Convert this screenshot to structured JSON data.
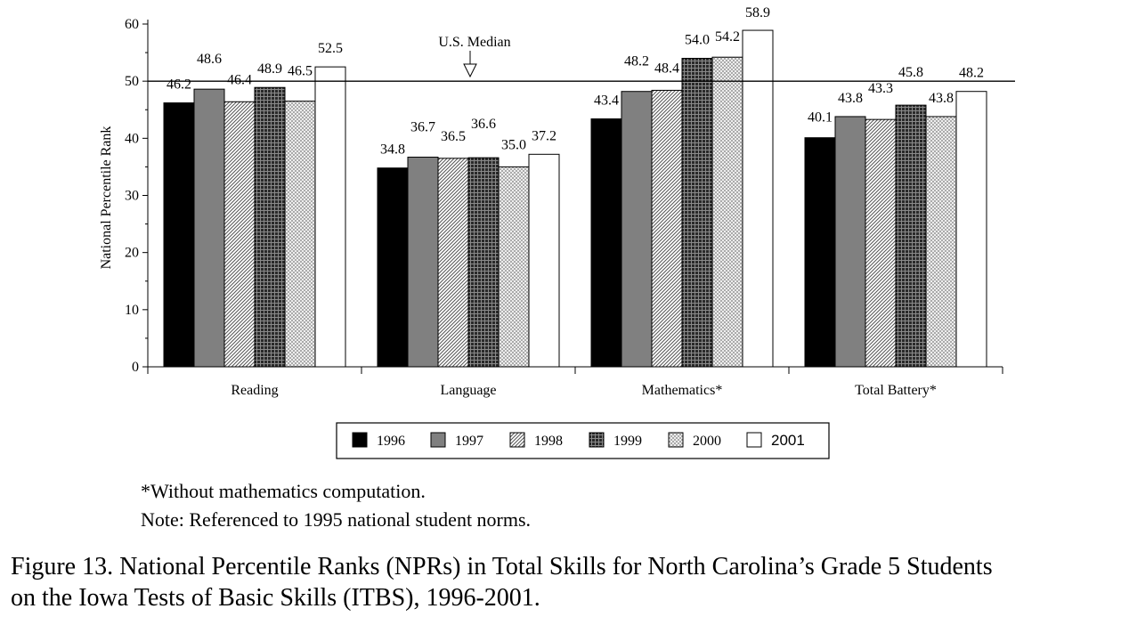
{
  "chart_data": {
    "type": "bar",
    "ylabel": "National Percentile Rank",
    "ylim": [
      0,
      60
    ],
    "yticks": [
      "0",
      "10",
      "20",
      "30",
      "40",
      "50",
      "60"
    ],
    "categories": [
      "Reading",
      "Language",
      "Mathematics*",
      "Total Battery*"
    ],
    "series": [
      {
        "name": "1996",
        "values": [
          46.2,
          34.8,
          43.4,
          40.1
        ],
        "labels": [
          "46.2",
          "34.8",
          "43.4",
          "40.1"
        ],
        "pattern": "solid-black"
      },
      {
        "name": "1997",
        "values": [
          48.6,
          36.7,
          48.2,
          43.8
        ],
        "labels": [
          "48.6",
          "36.7",
          "48.2",
          "43.8"
        ],
        "pattern": "solid-gray"
      },
      {
        "name": "1998",
        "values": [
          46.4,
          36.5,
          48.4,
          43.3
        ],
        "labels": [
          "46.4",
          "36.5",
          "48.4",
          "43.3"
        ],
        "pattern": "diagonal-hatch"
      },
      {
        "name": "1999",
        "values": [
          48.9,
          36.6,
          54.0,
          45.8
        ],
        "labels": [
          "48.9",
          "36.6",
          "54.0",
          "45.8"
        ],
        "pattern": "dark-grid"
      },
      {
        "name": "2000",
        "values": [
          46.5,
          35.0,
          54.2,
          43.8
        ],
        "labels": [
          "46.5",
          "35.0",
          "54.2",
          "43.8"
        ],
        "pattern": "light-crosshatch"
      },
      {
        "name": "2001",
        "values": [
          52.5,
          37.2,
          58.9,
          48.2
        ],
        "labels": [
          "52.5",
          "37.2",
          "58.9",
          "48.2"
        ],
        "pattern": "white"
      }
    ],
    "reference_line": {
      "value": 50,
      "label": "U.S. Median"
    },
    "legend_position": "bottom-center",
    "grid": false
  },
  "footnotes": {
    "line1": "*Without mathematics computation.",
    "line2": "Note:  Referenced to 1995 national student norms."
  },
  "caption": {
    "line1": "Figure 13.  National Percentile Ranks (NPRs) in Total Skills for North Carolina’s Grade 5 Students",
    "line2": "on the Iowa Tests of Basic Skills (ITBS), 1996-2001."
  }
}
